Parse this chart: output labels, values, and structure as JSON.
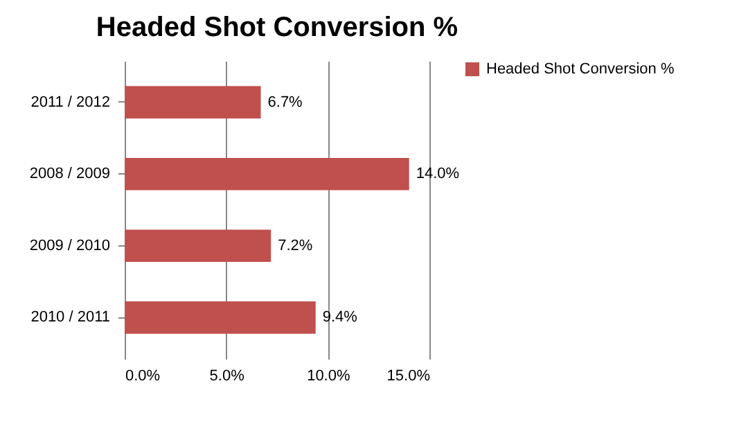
{
  "chart_data": {
    "type": "bar",
    "orientation": "horizontal",
    "title": "Headed Shot Conversion %",
    "categories": [
      "2011 / 2012",
      "2008 / 2009",
      "2009 / 2010",
      "2010 / 2011"
    ],
    "series": [
      {
        "name": "Headed Shot Conversion %",
        "color": "#c0504d",
        "values": [
          6.7,
          14.0,
          7.2,
          9.4
        ],
        "value_labels": [
          "6.7%",
          "14.0%",
          "7.2%",
          "9.4%"
        ]
      }
    ],
    "xlim": [
      0,
      15
    ],
    "xticks": [
      {
        "value": 0,
        "label": "0.0%"
      },
      {
        "value": 5,
        "label": "5.0%"
      },
      {
        "value": 10,
        "label": "10.0%"
      },
      {
        "value": 15,
        "label": "15.0%"
      }
    ],
    "grid": "x",
    "legend": "right"
  }
}
